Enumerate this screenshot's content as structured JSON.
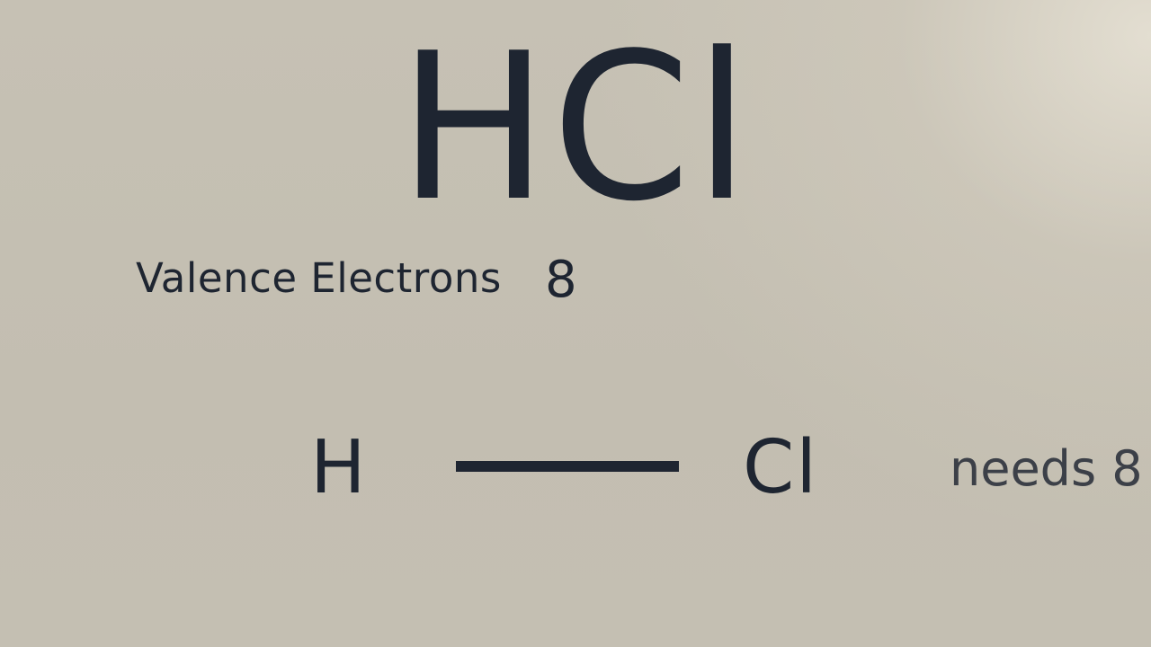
{
  "formula": "HCl",
  "valence": {
    "label": "Valence Electrons",
    "value": "8"
  },
  "lewis": {
    "left_atom": "H",
    "right_atom": "Cl",
    "bond": "single",
    "note": "needs 8"
  },
  "colors": {
    "background": "#c4bfb2",
    "text": "#1e2531",
    "note_text": "#3c4048"
  }
}
